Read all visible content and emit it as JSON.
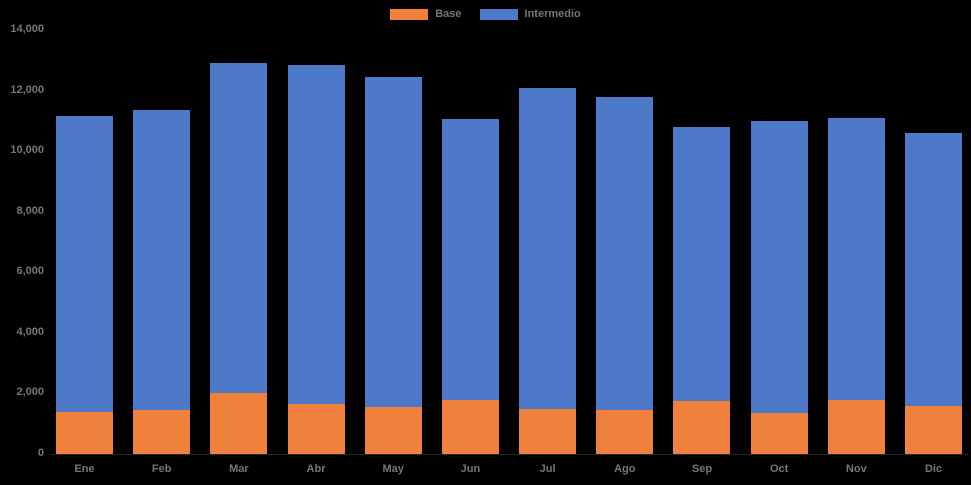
{
  "colors": {
    "background": "#000000",
    "base": "#F0813C",
    "intermedio": "#4E78C8",
    "text": "#767676",
    "axis_line": "#262626"
  },
  "legend": {
    "items": [
      {
        "label": "Base",
        "color": "#F0813C"
      },
      {
        "label": "Intermedio",
        "color": "#4E78C8"
      }
    ]
  },
  "chart_data": {
    "type": "bar",
    "stacked": true,
    "title": "",
    "xlabel": "",
    "ylabel": "",
    "categories": [
      "Ene",
      "Feb",
      "Mar",
      "Abr",
      "May",
      "Jun",
      "Jul",
      "Ago",
      "Sep",
      "Oct",
      "Nov",
      "Dic"
    ],
    "series": [
      {
        "name": "Base",
        "color": "#F0813C",
        "values": [
          1400,
          1450,
          2000,
          1650,
          1550,
          1800,
          1500,
          1450,
          1750,
          1350,
          1800,
          1600
        ]
      },
      {
        "name": "Intermedio",
        "color": "#4E78C8",
        "values": [
          9750,
          9900,
          10900,
          11200,
          10900,
          9250,
          10600,
          10350,
          9050,
          9650,
          9300,
          9000
        ]
      }
    ],
    "stacked_totals": [
      11150,
      11350,
      12900,
      12850,
      12450,
      11050,
      12100,
      11800,
      10800,
      11000,
      11100,
      10600
    ],
    "ylim": [
      0,
      14000
    ],
    "ytick_interval": 2000,
    "ytick_labels": [
      "0",
      "2,000",
      "4,000",
      "6,000",
      "8,000",
      "10,000",
      "12,000",
      "14,000"
    ],
    "grid": false,
    "legend_position": "top-center"
  }
}
